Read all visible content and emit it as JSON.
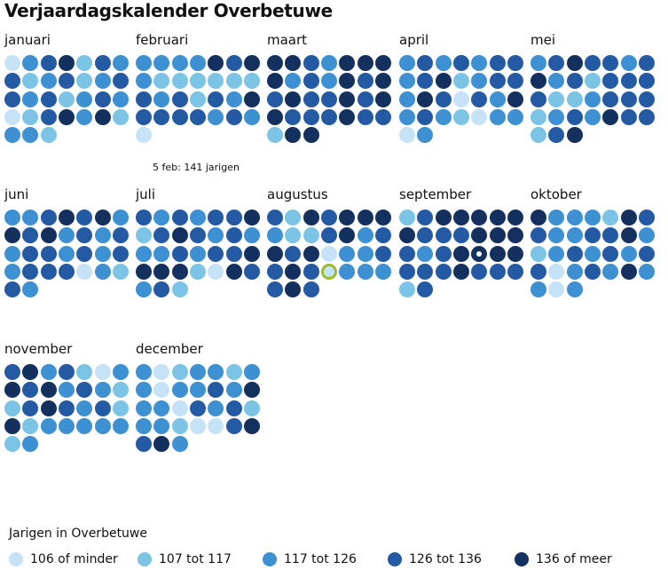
{
  "chart_data": {
    "type": "calendar",
    "title": "Verjaardagskalender Overbetuwe",
    "legend_title": "Jarigen in Overbetuwe",
    "value_bins": [
      "106 of minder",
      "107 tot 117",
      "117 tot 126",
      "126 tot 136",
      "136 of meer"
    ],
    "bin_colors": [
      "#c6e2f7",
      "#7cc4e6",
      "#3d90d1",
      "#245aa3",
      "#14305f"
    ],
    "months": [
      {
        "name": "januari",
        "days": [
          0,
          2,
          3,
          4,
          1,
          3,
          2,
          3,
          1,
          2,
          3,
          1,
          2,
          3,
          3,
          2,
          3,
          1,
          2,
          3,
          2,
          0,
          1,
          3,
          4,
          2,
          4,
          1,
          2,
          2,
          1
        ]
      },
      {
        "name": "februari",
        "days": [
          2,
          2,
          2,
          2,
          4,
          3,
          4,
          2,
          1,
          1,
          1,
          1,
          1,
          1,
          3,
          2,
          3,
          1,
          3,
          2,
          4,
          3,
          3,
          3,
          3,
          2,
          3,
          2,
          0
        ]
      },
      {
        "name": "maart",
        "days": [
          4,
          4,
          3,
          2,
          4,
          4,
          4,
          4,
          2,
          3,
          2,
          4,
          3,
          4,
          3,
          4,
          3,
          3,
          4,
          3,
          4,
          4,
          3,
          3,
          3,
          4,
          3,
          3,
          1,
          4,
          4
        ]
      },
      {
        "name": "april",
        "days": [
          2,
          3,
          2,
          3,
          2,
          3,
          3,
          2,
          3,
          4,
          1,
          2,
          3,
          3,
          2,
          4,
          3,
          0,
          3,
          2,
          4,
          2,
          3,
          2,
          1,
          0,
          2,
          2,
          0,
          2
        ]
      },
      {
        "name": "mei",
        "days": [
          2,
          3,
          4,
          3,
          3,
          2,
          3,
          4,
          2,
          3,
          1,
          3,
          3,
          3,
          3,
          1,
          1,
          2,
          3,
          3,
          3,
          1,
          2,
          3,
          2,
          4,
          3,
          3,
          1,
          3,
          4
        ]
      },
      {
        "name": "juni",
        "days": [
          2,
          2,
          3,
          4,
          3,
          4,
          2,
          4,
          3,
          4,
          2,
          3,
          2,
          3,
          2,
          3,
          3,
          2,
          3,
          2,
          3,
          2,
          3,
          3,
          3,
          0,
          2,
          1,
          3,
          2
        ]
      },
      {
        "name": "juli",
        "days": [
          3,
          2,
          3,
          2,
          3,
          3,
          4,
          1,
          3,
          4,
          3,
          2,
          3,
          2,
          2,
          2,
          3,
          2,
          3,
          3,
          4,
          4,
          4,
          4,
          1,
          0,
          4,
          3,
          2,
          3,
          1
        ]
      },
      {
        "name": "augustus",
        "days": [
          3,
          1,
          4,
          3,
          4,
          4,
          4,
          2,
          1,
          1,
          3,
          4,
          2,
          3,
          4,
          3,
          4,
          0,
          2,
          2,
          3,
          3,
          4,
          3,
          0,
          2,
          2,
          2,
          3,
          4,
          3
        ]
      },
      {
        "name": "september",
        "days": [
          1,
          3,
          4,
          4,
          4,
          4,
          4,
          4,
          3,
          3,
          3,
          4,
          4,
          4,
          3,
          2,
          3,
          4,
          4,
          4,
          4,
          3,
          3,
          3,
          4,
          3,
          3,
          3,
          1,
          3
        ]
      },
      {
        "name": "oktober",
        "days": [
          4,
          2,
          2,
          2,
          1,
          4,
          3,
          3,
          2,
          2,
          3,
          3,
          4,
          2,
          1,
          2,
          3,
          2,
          3,
          2,
          3,
          3,
          0,
          2,
          3,
          2,
          4,
          2,
          2,
          0,
          2
        ]
      },
      {
        "name": "november",
        "days": [
          3,
          4,
          2,
          3,
          1,
          0,
          2,
          4,
          3,
          4,
          2,
          3,
          2,
          1,
          1,
          3,
          4,
          3,
          2,
          3,
          1,
          4,
          1,
          2,
          2,
          2,
          2,
          2,
          1,
          2
        ]
      },
      {
        "name": "december",
        "days": [
          2,
          0,
          1,
          2,
          2,
          1,
          2,
          2,
          0,
          2,
          2,
          3,
          2,
          4,
          2,
          2,
          0,
          3,
          2,
          3,
          1,
          2,
          2,
          1,
          0,
          0,
          3,
          4,
          3,
          4,
          2
        ]
      }
    ],
    "highlighted_day": {
      "month": "augustus",
      "day": 25
    },
    "marked_day": {
      "month": "september",
      "day": 19
    },
    "annotation": "5 feb: 141 jarigen"
  }
}
